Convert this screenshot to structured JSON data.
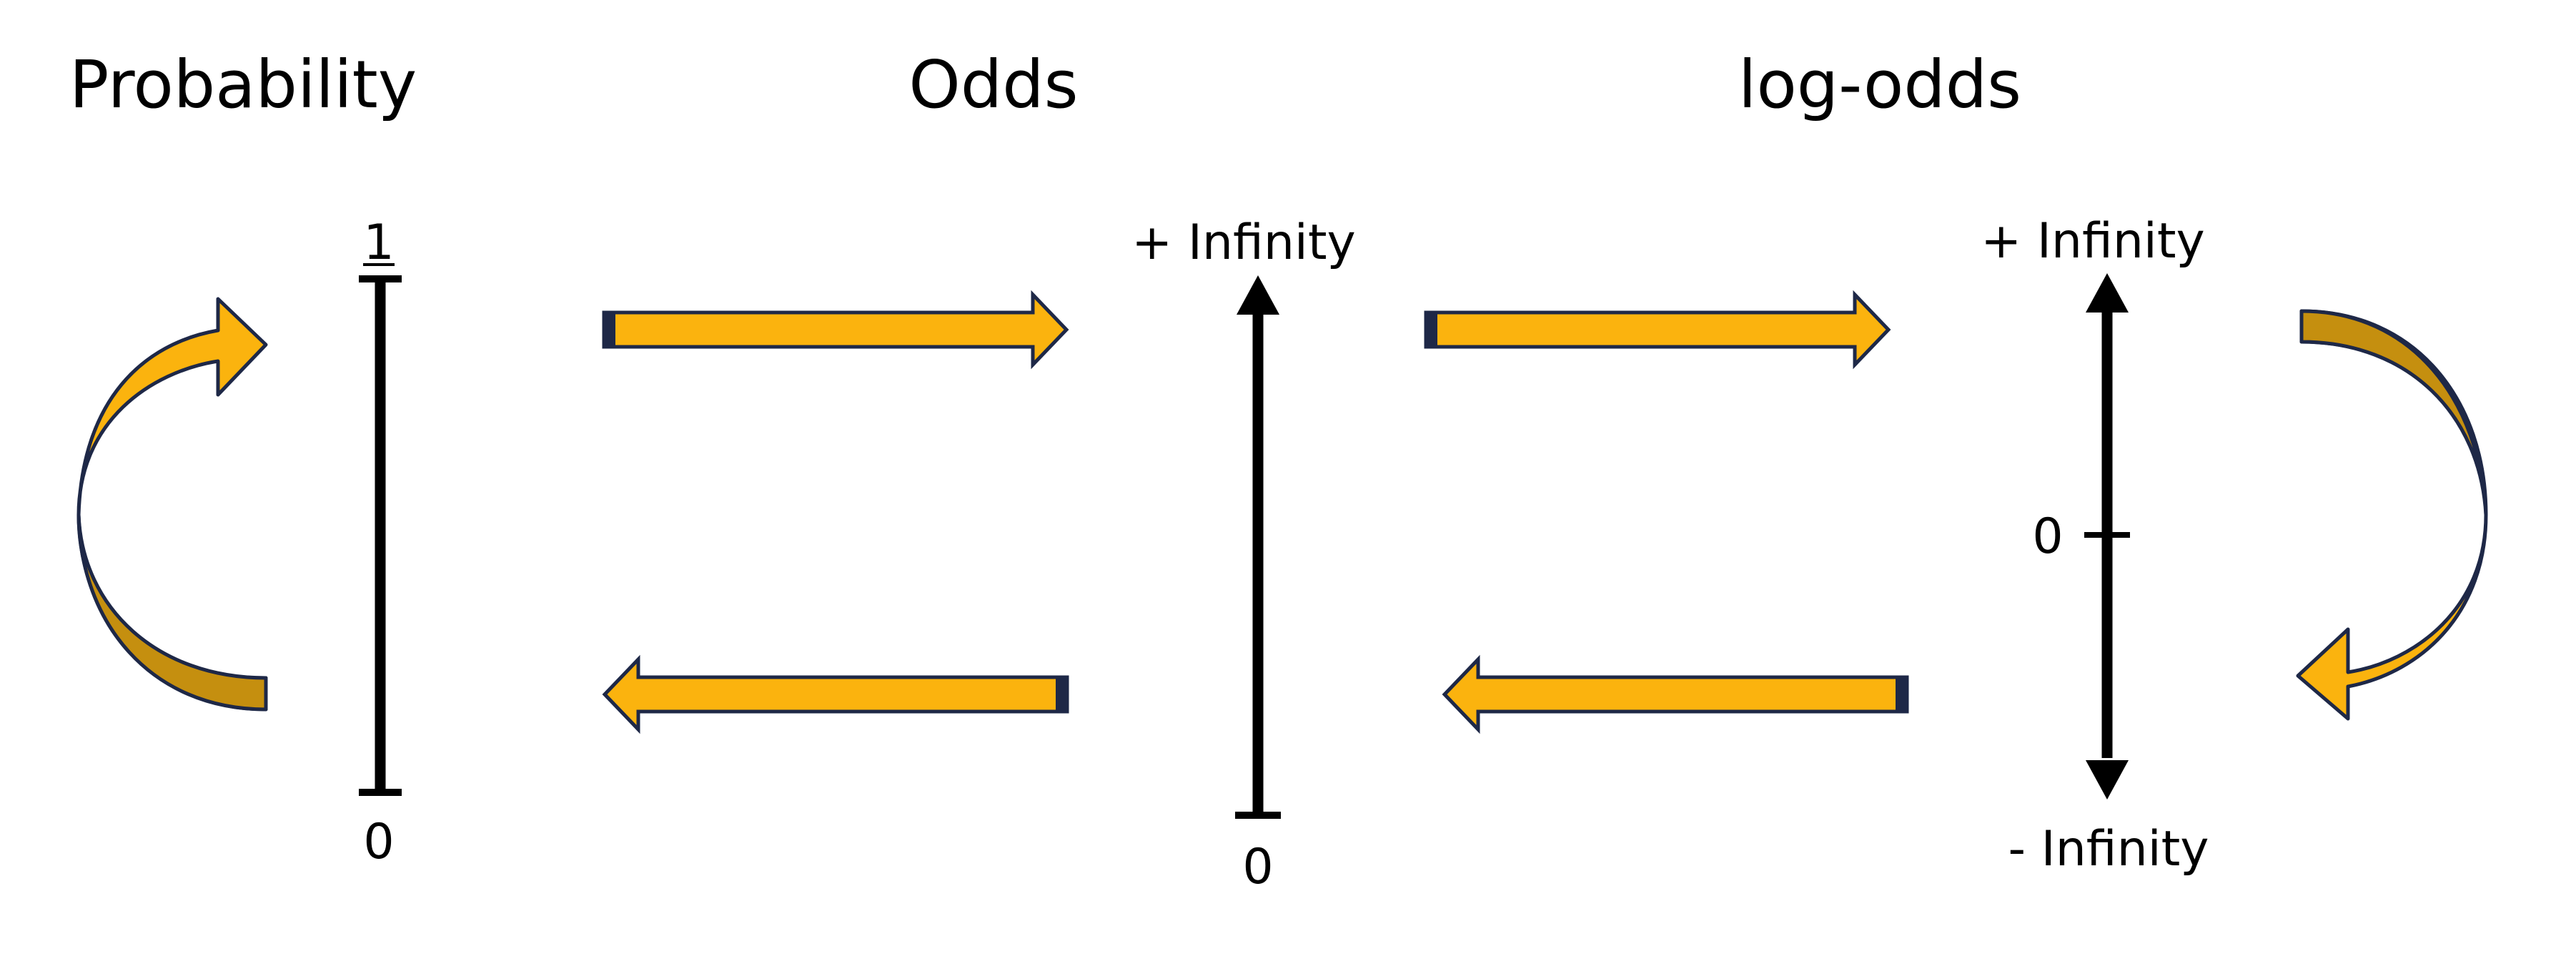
{
  "diagram": {
    "titles": {
      "probability": "Probability",
      "odds": "Odds",
      "log_odds": "log-odds"
    },
    "probability_scale": {
      "top": "1",
      "bottom": "0"
    },
    "odds_scale": {
      "top": "+ Infinity",
      "bottom": "0"
    },
    "log_odds_scale": {
      "top": "+ Infinity",
      "middle": "0",
      "bottom": "- Infinity"
    },
    "colors": {
      "arrow_fill": "#FBB30E",
      "arrow_fill_dark": "#C58F0F",
      "arrow_outline": "#1E2847",
      "axis": "#000000"
    }
  }
}
